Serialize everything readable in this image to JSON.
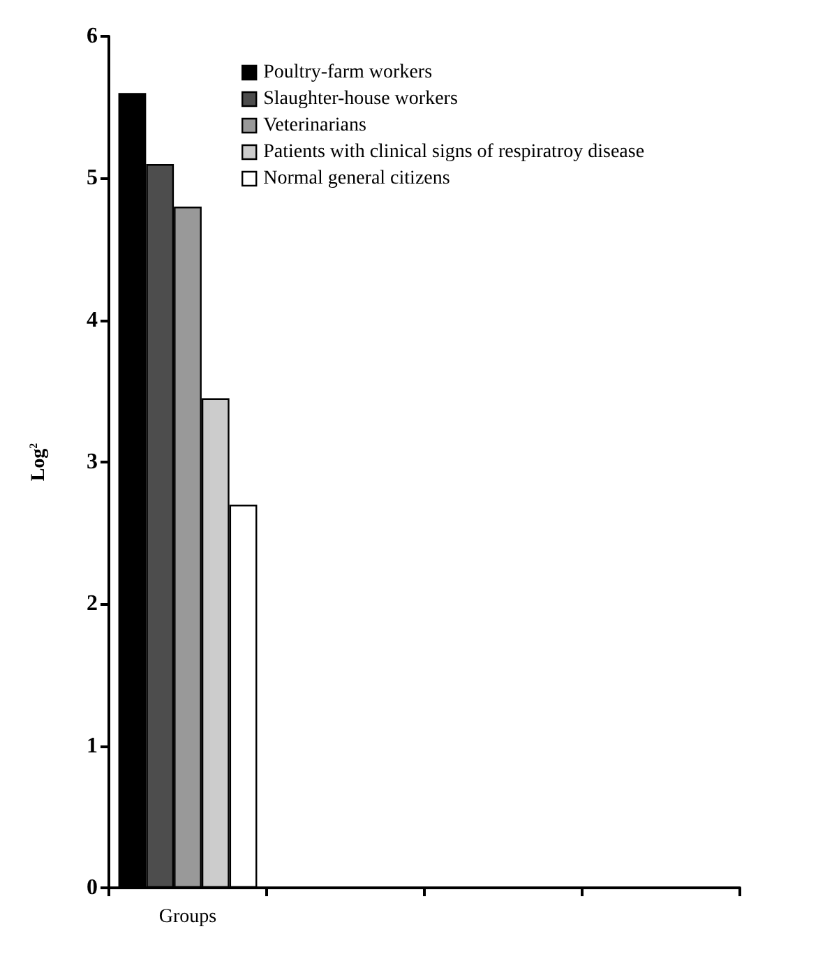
{
  "chart_data": {
    "type": "bar",
    "ylabel": "Log$^{2}$",
    "categories": [
      "Groups",
      null,
      null,
      null
    ],
    "series": [
      {
        "name": "Poultry-farm workers",
        "color": "#000000",
        "values": [
          5.6,
          null,
          null,
          null
        ]
      },
      {
        "name": "Slaughter-house workers",
        "color": "#4d4d4d",
        "values": [
          5.1,
          null,
          null,
          null
        ]
      },
      {
        "name": "Veterinarians",
        "color": "#999999",
        "values": [
          4.8,
          null,
          null,
          null
        ]
      },
      {
        "name": "Patients with clinical signs of respiratroy disease",
        "color": "#cccccc",
        "values": [
          3.45,
          null,
          null,
          null
        ]
      },
      {
        "name": "Normal general citizens",
        "color": "#ffffff",
        "values": [
          2.7,
          null,
          null,
          null
        ]
      }
    ],
    "ylim": [
      0,
      6
    ],
    "yticks": [
      0,
      1,
      2,
      3,
      4,
      5,
      6
    ],
    "grid": false,
    "legend": "top right"
  }
}
